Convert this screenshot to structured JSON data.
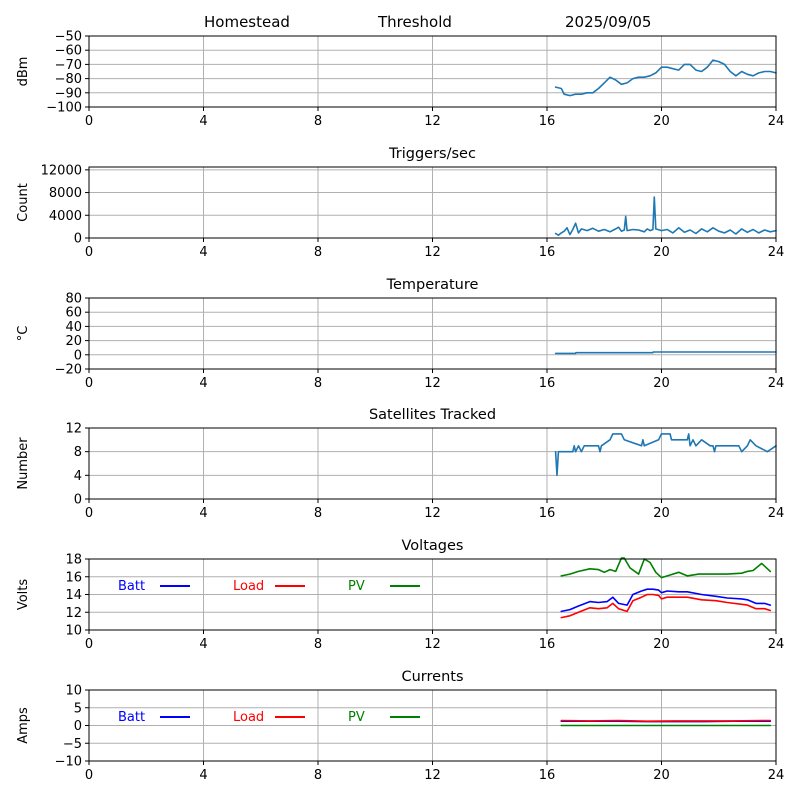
{
  "header": {
    "station": "Homestead",
    "mode": "Threshold",
    "date": "2025/09/05"
  },
  "colors": {
    "series_default": "#1f77b4",
    "batt": "#0000ff",
    "load": "#ff0000",
    "pv": "#008000",
    "grid": "#b0b0b0"
  },
  "chart_data": [
    {
      "id": "signal",
      "type": "line",
      "title": "",
      "xlabel": "",
      "ylabel": "dBm",
      "xlim": [
        0,
        24
      ],
      "ylim": [
        -100,
        -50
      ],
      "xticks": [
        0,
        4,
        8,
        12,
        16,
        20,
        24
      ],
      "yticks": [
        -100,
        -90,
        -80,
        -70,
        -60,
        -50
      ],
      "ytick_labels": [
        "−100",
        "−90",
        "−80",
        "−70",
        "−60",
        "−50"
      ],
      "grid": true,
      "series": [
        {
          "color": "#1f77b4",
          "x": [
            16.3,
            16.5,
            16.6,
            16.8,
            17.0,
            17.2,
            17.4,
            17.6,
            17.8,
            18.0,
            18.2,
            18.4,
            18.6,
            18.8,
            19.0,
            19.2,
            19.4,
            19.6,
            19.8,
            20.0,
            20.2,
            20.4,
            20.6,
            20.8,
            21.0,
            21.2,
            21.4,
            21.6,
            21.8,
            22.0,
            22.2,
            22.4,
            22.6,
            22.8,
            23.0,
            23.2,
            23.4,
            23.6,
            23.8,
            24.0
          ],
          "values": [
            -86,
            -87,
            -91,
            -92,
            -91,
            -91,
            -90,
            -90,
            -87,
            -83,
            -79,
            -81,
            -84,
            -83,
            -80,
            -79,
            -79,
            -78,
            -76,
            -72,
            -72,
            -73,
            -74,
            -70,
            -70,
            -74,
            -75,
            -72,
            -67,
            -68,
            -70,
            -75,
            -78,
            -75,
            -77,
            -78,
            -76,
            -75,
            -75,
            -76
          ]
        }
      ]
    },
    {
      "id": "triggers",
      "type": "line",
      "title": "Triggers/sec",
      "xlabel": "",
      "ylabel": "Count",
      "xlim": [
        0,
        24
      ],
      "ylim": [
        0,
        12500
      ],
      "xticks": [
        0,
        4,
        8,
        12,
        16,
        20,
        24
      ],
      "yticks": [
        0,
        4000,
        8000,
        12000
      ],
      "ytick_labels": [
        "0",
        "4000",
        "8000",
        "12000"
      ],
      "grid": true,
      "series": [
        {
          "color": "#1f77b4",
          "x": [
            16.3,
            16.4,
            16.5,
            16.6,
            16.7,
            16.8,
            16.9,
            17.0,
            17.1,
            17.2,
            17.4,
            17.6,
            17.8,
            18.0,
            18.2,
            18.4,
            18.5,
            18.6,
            18.7,
            18.75,
            18.8,
            19.0,
            19.2,
            19.4,
            19.5,
            19.6,
            19.7,
            19.75,
            19.8,
            20.0,
            20.2,
            20.4,
            20.6,
            20.8,
            21.0,
            21.2,
            21.4,
            21.6,
            21.8,
            22.0,
            22.2,
            22.4,
            22.6,
            22.8,
            23.0,
            23.2,
            23.4,
            23.6,
            23.8,
            24.0
          ],
          "values": [
            800,
            500,
            900,
            1200,
            1800,
            600,
            1500,
            2600,
            900,
            1600,
            1300,
            1700,
            1200,
            1500,
            1100,
            1600,
            1900,
            1200,
            1400,
            3800,
            1300,
            1500,
            1400,
            1100,
            1600,
            1300,
            1500,
            7200,
            1600,
            1300,
            1500,
            900,
            1800,
            1000,
            1400,
            800,
            1600,
            1100,
            1800,
            1200,
            900,
            1400,
            700,
            1600,
            1000,
            1500,
            900,
            1400,
            1100,
            1300
          ]
        }
      ]
    },
    {
      "id": "temperature",
      "type": "line",
      "title": "Temperature",
      "xlabel": "",
      "ylabel": "°C",
      "xlim": [
        0,
        24
      ],
      "ylim": [
        -20,
        80
      ],
      "xticks": [
        0,
        4,
        8,
        12,
        16,
        20,
        24
      ],
      "yticks": [
        -20,
        0,
        20,
        40,
        60,
        80
      ],
      "ytick_labels": [
        "−20",
        "0",
        "20",
        "40",
        "60",
        "80"
      ],
      "grid": true,
      "series": [
        {
          "color": "#1f77b4",
          "x": [
            16.3,
            17.0,
            17.01,
            19.7,
            19.71,
            24.0
          ],
          "values": [
            2,
            2,
            3,
            3,
            4,
            4
          ]
        }
      ]
    },
    {
      "id": "satellites",
      "type": "line",
      "title": "Satellites Tracked",
      "xlabel": "",
      "ylabel": "Number",
      "xlim": [
        0,
        24
      ],
      "ylim": [
        0,
        12
      ],
      "xticks": [
        0,
        4,
        8,
        12,
        16,
        20,
        24
      ],
      "yticks": [
        0,
        4,
        8,
        12
      ],
      "ytick_labels": [
        "0",
        "4",
        "8",
        "12"
      ],
      "grid": true,
      "series": [
        {
          "color": "#1f77b4",
          "x": [
            16.3,
            16.35,
            16.4,
            16.5,
            16.9,
            16.95,
            17.0,
            17.1,
            17.2,
            17.3,
            17.8,
            17.85,
            17.9,
            18.2,
            18.3,
            18.6,
            18.7,
            19.3,
            19.35,
            19.4,
            19.9,
            20.0,
            20.3,
            20.35,
            20.9,
            20.95,
            21.0,
            21.1,
            21.2,
            21.4,
            21.7,
            21.8,
            21.85,
            21.9,
            22.7,
            22.8,
            23.0,
            23.1,
            23.3,
            23.7,
            24.0
          ],
          "values": [
            8,
            4,
            8,
            8,
            8,
            9,
            8,
            9,
            8,
            9,
            9,
            8,
            9,
            10,
            11,
            11,
            10,
            9,
            10,
            9,
            10,
            11,
            11,
            10,
            10,
            11,
            9,
            10,
            9,
            10,
            9,
            9,
            8,
            9,
            9,
            8,
            9,
            10,
            9,
            8,
            9
          ]
        }
      ]
    },
    {
      "id": "voltages",
      "type": "line",
      "title": "Voltages",
      "xlabel": "",
      "ylabel": "Volts",
      "xlim": [
        0,
        24
      ],
      "ylim": [
        10,
        18
      ],
      "xticks": [
        0,
        4,
        8,
        12,
        16,
        20,
        24
      ],
      "yticks": [
        10,
        12,
        14,
        16,
        18
      ],
      "ytick_labels": [
        "10",
        "12",
        "14",
        "16",
        "18"
      ],
      "grid": true,
      "legend": {
        "placement": "inside-top-left",
        "layout": "horizontal"
      },
      "series": [
        {
          "name": "Batt",
          "color": "#0000ff",
          "x": [
            16.5,
            16.8,
            17.1,
            17.5,
            17.8,
            18.1,
            18.3,
            18.5,
            18.8,
            19.0,
            19.3,
            19.5,
            19.7,
            19.9,
            20.0,
            20.2,
            20.6,
            20.9,
            21.4,
            21.9,
            22.3,
            22.8,
            23.0,
            23.3,
            23.6,
            23.8
          ],
          "values": [
            12.1,
            12.3,
            12.7,
            13.2,
            13.1,
            13.2,
            13.7,
            13.0,
            12.8,
            14.0,
            14.4,
            14.6,
            14.6,
            14.5,
            14.2,
            14.4,
            14.3,
            14.3,
            14.0,
            13.8,
            13.6,
            13.5,
            13.4,
            13.0,
            13.0,
            12.8
          ]
        },
        {
          "name": "Load",
          "color": "#ff0000",
          "x": [
            16.5,
            16.8,
            17.1,
            17.5,
            17.8,
            18.1,
            18.3,
            18.5,
            18.8,
            19.0,
            19.3,
            19.5,
            19.7,
            19.9,
            20.0,
            20.2,
            20.6,
            20.9,
            21.4,
            21.9,
            22.3,
            22.8,
            23.0,
            23.3,
            23.6,
            23.8
          ],
          "values": [
            11.4,
            11.6,
            12.0,
            12.5,
            12.4,
            12.5,
            13.0,
            12.4,
            12.1,
            13.3,
            13.7,
            14.0,
            14.0,
            13.9,
            13.5,
            13.7,
            13.7,
            13.7,
            13.4,
            13.3,
            13.1,
            12.9,
            12.8,
            12.4,
            12.4,
            12.2
          ]
        },
        {
          "name": "PV",
          "color": "#008000",
          "x": [
            16.5,
            16.8,
            17.1,
            17.5,
            17.8,
            18.0,
            18.2,
            18.4,
            18.6,
            18.7,
            18.9,
            19.2,
            19.4,
            19.6,
            19.8,
            20.0,
            20.3,
            20.6,
            20.9,
            21.3,
            21.8,
            22.3,
            22.8,
            23.0,
            23.2,
            23.5,
            23.8
          ],
          "values": [
            16.1,
            16.3,
            16.6,
            16.9,
            16.8,
            16.5,
            16.8,
            16.6,
            18.1,
            18.1,
            17.0,
            16.3,
            18.0,
            17.6,
            16.5,
            15.9,
            16.2,
            16.5,
            16.1,
            16.3,
            16.3,
            16.3,
            16.4,
            16.6,
            16.7,
            17.5,
            16.6
          ]
        }
      ]
    },
    {
      "id": "currents",
      "type": "line",
      "title": "Currents",
      "xlabel": "",
      "ylabel": "Amps",
      "xlim": [
        0,
        24
      ],
      "ylim": [
        -10,
        10
      ],
      "xticks": [
        0,
        4,
        8,
        12,
        16,
        20,
        24
      ],
      "yticks": [
        -10,
        -5,
        0,
        5,
        10
      ],
      "ytick_labels": [
        "−10",
        "−5",
        "0",
        "5",
        "10"
      ],
      "grid": true,
      "legend": {
        "placement": "inside-top-left",
        "layout": "horizontal"
      },
      "series": [
        {
          "name": "Batt",
          "color": "#0000ff",
          "x": [
            16.5,
            17.5,
            18.5,
            19.5,
            20.5,
            21.5,
            22.5,
            23.5,
            23.8
          ],
          "values": [
            1.2,
            1.2,
            1.2,
            1.1,
            1.1,
            1.1,
            1.2,
            1.2,
            1.2
          ]
        },
        {
          "name": "Load",
          "color": "#ff0000",
          "x": [
            16.5,
            17.5,
            18.5,
            19.5,
            20.5,
            21.5,
            22.5,
            23.5,
            23.8
          ],
          "values": [
            1.4,
            1.3,
            1.4,
            1.2,
            1.3,
            1.3,
            1.3,
            1.4,
            1.4
          ]
        },
        {
          "name": "PV",
          "color": "#008000",
          "x": [
            16.5,
            17.5,
            18.5,
            19.5,
            20.5,
            21.5,
            22.5,
            23.5,
            23.8
          ],
          "values": [
            0,
            0,
            0,
            0,
            0,
            0,
            0,
            0,
            0
          ]
        }
      ]
    }
  ]
}
